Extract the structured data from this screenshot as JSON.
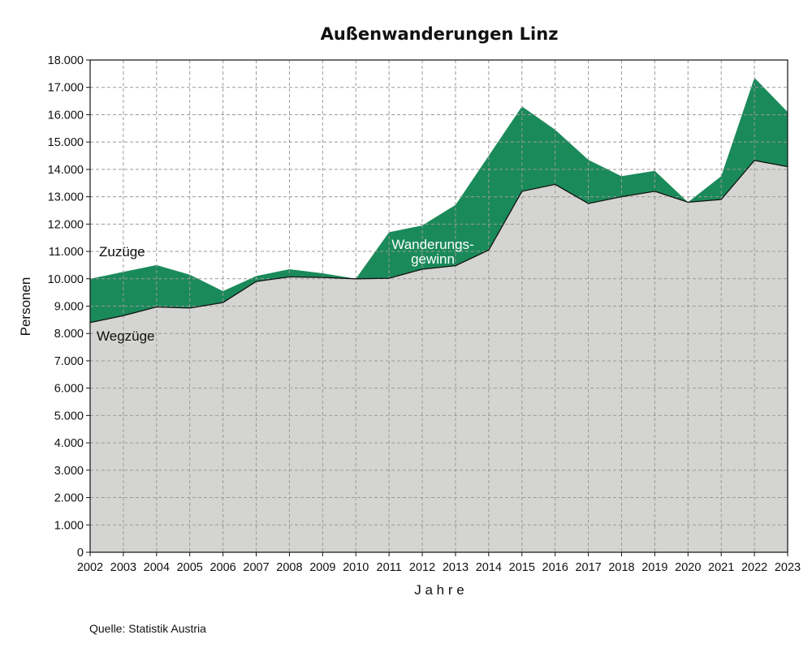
{
  "chart_data": {
    "type": "area",
    "title": "Außenwanderungen Linz",
    "xlabel": "J a h r e",
    "ylabel": "Personen",
    "source": "Quelle: Statistik Austria",
    "x": [
      "2002",
      "2003",
      "2004",
      "2005",
      "2006",
      "2007",
      "2008",
      "2009",
      "2010",
      "2011",
      "2012",
      "2013",
      "2014",
      "2015",
      "2016",
      "2017",
      "2018",
      "2019",
      "2020",
      "2021",
      "2022",
      "2023"
    ],
    "ylim": [
      0,
      18000
    ],
    "yticks": [
      0,
      1000,
      2000,
      3000,
      4000,
      5000,
      6000,
      7000,
      8000,
      9000,
      10000,
      11000,
      12000,
      13000,
      14000,
      15000,
      16000,
      17000,
      18000
    ],
    "ytick_labels": [
      "0",
      "1.000",
      "2.000",
      "3.000",
      "4.000",
      "5.000",
      "6.000",
      "7.000",
      "8.000",
      "9.000",
      "10.000",
      "11.000",
      "12.000",
      "13.000",
      "14.000",
      "15.000",
      "16.000",
      "17.000",
      "18.000"
    ],
    "grid": true,
    "series": [
      {
        "name": "Zuzüge",
        "color": "#1b8a5a",
        "values": [
          10000,
          10250,
          10500,
          10150,
          9550,
          10100,
          10350,
          10200,
          10000,
          11700,
          11950,
          12700,
          14500,
          16300,
          15450,
          14350,
          13750,
          13950,
          12800,
          13750,
          17350,
          16100
        ]
      },
      {
        "name": "Wegzüge",
        "color": "#d4d4d2",
        "values": [
          8400,
          8650,
          8970,
          8930,
          9130,
          9900,
          10070,
          10050,
          10000,
          10020,
          10350,
          10480,
          11050,
          13200,
          13450,
          12750,
          13000,
          13200,
          12800,
          12900,
          14330,
          14100
        ]
      }
    ],
    "annotations": [
      {
        "text": "Zuzüge",
        "color": "#111111"
      },
      {
        "text": "Wegzüge",
        "color": "#111111"
      },
      {
        "text": "Wanderungs-",
        "color": "#ffffff"
      },
      {
        "text": "gewinn",
        "color": "#ffffff"
      }
    ]
  }
}
